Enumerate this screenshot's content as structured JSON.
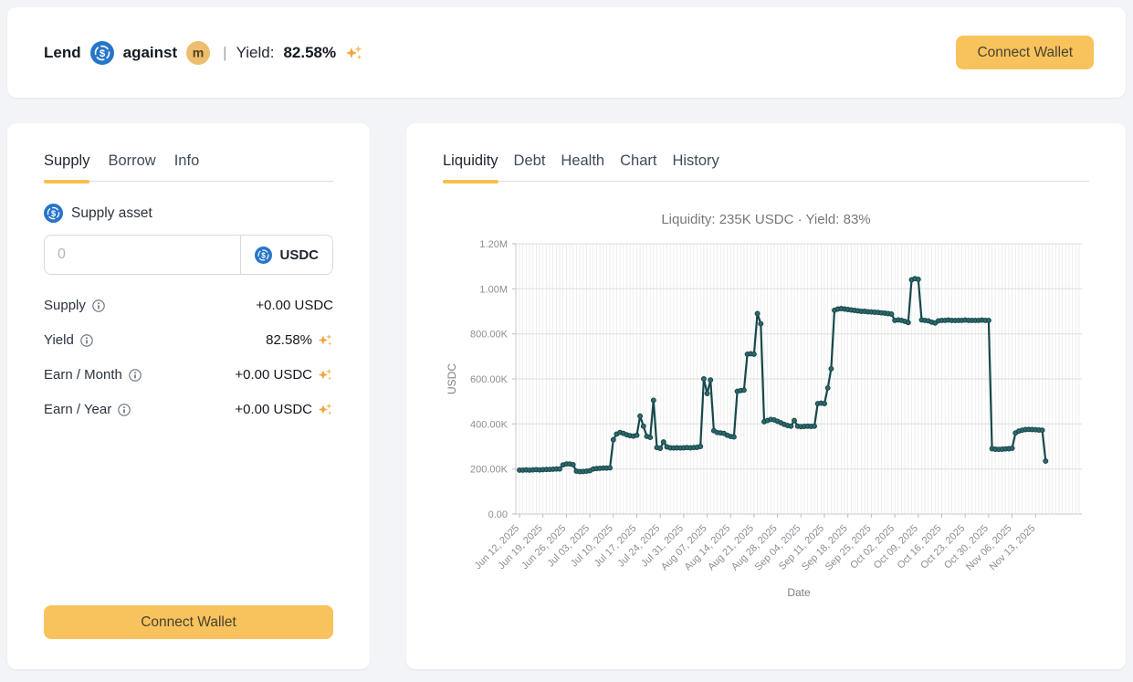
{
  "header": {
    "title_lend": "Lend",
    "title_against": "against",
    "separator": "|",
    "yield_label": "Yield:",
    "yield_value": "82.58%",
    "connect_wallet_label": "Connect Wallet"
  },
  "supply_panel": {
    "tabs": [
      {
        "label": "Supply",
        "active": true
      },
      {
        "label": "Borrow",
        "active": false
      },
      {
        "label": "Info",
        "active": false
      }
    ],
    "supply_asset_label": "Supply asset",
    "amount_input": {
      "placeholder": "0",
      "value": ""
    },
    "asset_selector": {
      "label": "USDC"
    },
    "details": [
      {
        "label": "Supply",
        "value": "+0.00 USDC",
        "sparkle": false
      },
      {
        "label": "Yield",
        "value": "82.58%",
        "sparkle": true
      },
      {
        "label": "Earn / Month",
        "value": "+0.00 USDC",
        "sparkle": true
      },
      {
        "label": "Earn / Year",
        "value": "+0.00 USDC",
        "sparkle": true
      }
    ],
    "connect_wallet_label": "Connect Wallet"
  },
  "chart_panel": {
    "tabs": [
      {
        "label": "Liquidity",
        "active": true
      },
      {
        "label": "Debt",
        "active": false
      },
      {
        "label": "Health",
        "active": false
      },
      {
        "label": "Chart",
        "active": false
      },
      {
        "label": "History",
        "active": false
      }
    ]
  },
  "chart_data": {
    "type": "line",
    "title": "Liquidity: 235K USDC · Yield: 83%",
    "xlabel": "Date",
    "ylabel": "USDC",
    "ylim": [
      0,
      1200000
    ],
    "ytick_labels": [
      "0.00",
      "200.00K",
      "400.00K",
      "600.00K",
      "800.00K",
      "1.00M",
      "1.20M"
    ],
    "xtick_labels": [
      "Jun 12, 2025",
      "Jun 19, 2025",
      "Jun 26, 2025",
      "Jul 03, 2025",
      "Jul 10, 2025",
      "Jul 17, 2025",
      "Jul 24, 2025",
      "Jul 31, 2025",
      "Aug 07, 2025",
      "Aug 14, 2025",
      "Aug 21, 2025",
      "Aug 28, 2025",
      "Sep 04, 2025",
      "Sep 11, 2025",
      "Sep 18, 2025",
      "Sep 25, 2025",
      "Oct 02, 2025",
      "Oct 09, 2025",
      "Oct 16, 2025",
      "Oct 23, 2025",
      "Oct 30, 2025",
      "Nov 06, 2025",
      "Nov 13, 2025"
    ],
    "xtick_every_days": 7,
    "start_date": "Jun 12, 2025",
    "frequency": "daily",
    "values_unit": "thousand USDC",
    "values": [
      195,
      195,
      196,
      195,
      196,
      197,
      196,
      197,
      198,
      198,
      199,
      200,
      200,
      218,
      222,
      222,
      219,
      190,
      188,
      189,
      190,
      192,
      200,
      202,
      203,
      204,
      204,
      205,
      330,
      355,
      362,
      358,
      352,
      348,
      346,
      350,
      435,
      390,
      345,
      340,
      505,
      295,
      292,
      320,
      298,
      294,
      293,
      294,
      293,
      294,
      295,
      294,
      295,
      296,
      300,
      600,
      535,
      595,
      370,
      362,
      360,
      358,
      350,
      344,
      342,
      545,
      548,
      550,
      710,
      712,
      710,
      890,
      845,
      410,
      415,
      420,
      418,
      412,
      405,
      398,
      393,
      390,
      415,
      390,
      388,
      389,
      390,
      389,
      390,
      490,
      492,
      490,
      560,
      645,
      905,
      910,
      912,
      910,
      908,
      906,
      904,
      902,
      900,
      900,
      898,
      897,
      896,
      895,
      893,
      892,
      890,
      888,
      860,
      862,
      860,
      856,
      850,
      1040,
      1045,
      1042,
      862,
      860,
      858,
      852,
      848,
      858,
      860,
      860,
      861,
      860,
      859,
      860,
      860,
      861,
      860,
      860,
      860,
      860,
      861,
      860,
      860,
      290,
      288,
      287,
      288,
      289,
      290,
      292,
      360,
      368,
      372,
      375,
      376,
      375,
      374,
      373,
      372,
      235
    ],
    "grid": true,
    "legend": "none",
    "line_color": "#17484b",
    "marker_fill": "#2d6a6d"
  },
  "colors": {
    "accent_amber": "#f7bf4e",
    "button_amber": "#f8c35c",
    "usdc_blue": "#2775CA",
    "m_token_tan": "#edbe70",
    "line_teal": "#17484b"
  }
}
